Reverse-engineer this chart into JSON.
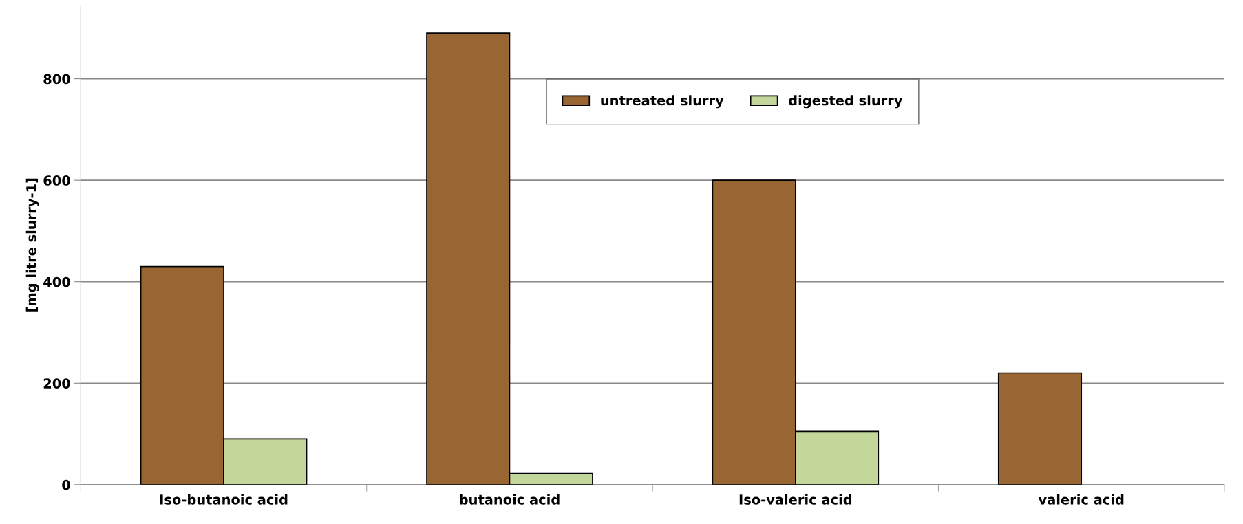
{
  "chart_data": {
    "type": "bar",
    "ylabel": "[mg litre slurry-1]",
    "categories": [
      "Iso-butanoic acid",
      "butanoic acid",
      "Iso-valeric acid",
      "valeric acid"
    ],
    "series": [
      {
        "name": "untreated slurry",
        "color": "#996633",
        "values": [
          430,
          890,
          600,
          220
        ]
      },
      {
        "name": "digested slurry",
        "color": "#c4d79b",
        "values": [
          90,
          22,
          105,
          null
        ]
      }
    ],
    "ylim": [
      0,
      945
    ],
    "yticks": [
      0,
      200,
      400,
      600,
      800
    ],
    "grid": "y",
    "legend": "top"
  }
}
